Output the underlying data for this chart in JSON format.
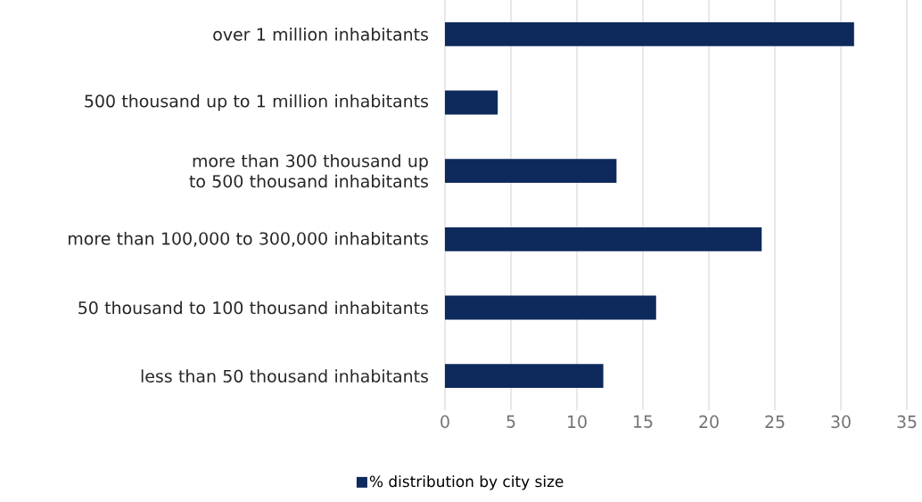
{
  "chart_data": {
    "type": "bar",
    "orientation": "horizontal",
    "categories": [
      "over 1 million inhabitants",
      "500 thousand up to 1 million inhabitants",
      "more than 300 thousand up to 500 thousand inhabitants",
      "more than 100,000 to 300,000 inhabitants",
      "50 thousand to 100 thousand inhabitants",
      "less than 50 thousand inhabitants"
    ],
    "series": [
      {
        "name": "% distribution by city size",
        "color": "#0e2a5c",
        "values": [
          31,
          4,
          13,
          24,
          16,
          12
        ]
      }
    ],
    "xlim": [
      0,
      35
    ],
    "xticks": [
      0,
      5,
      10,
      15,
      20,
      25,
      30,
      35
    ],
    "grid": "x",
    "legend": "bottom"
  }
}
